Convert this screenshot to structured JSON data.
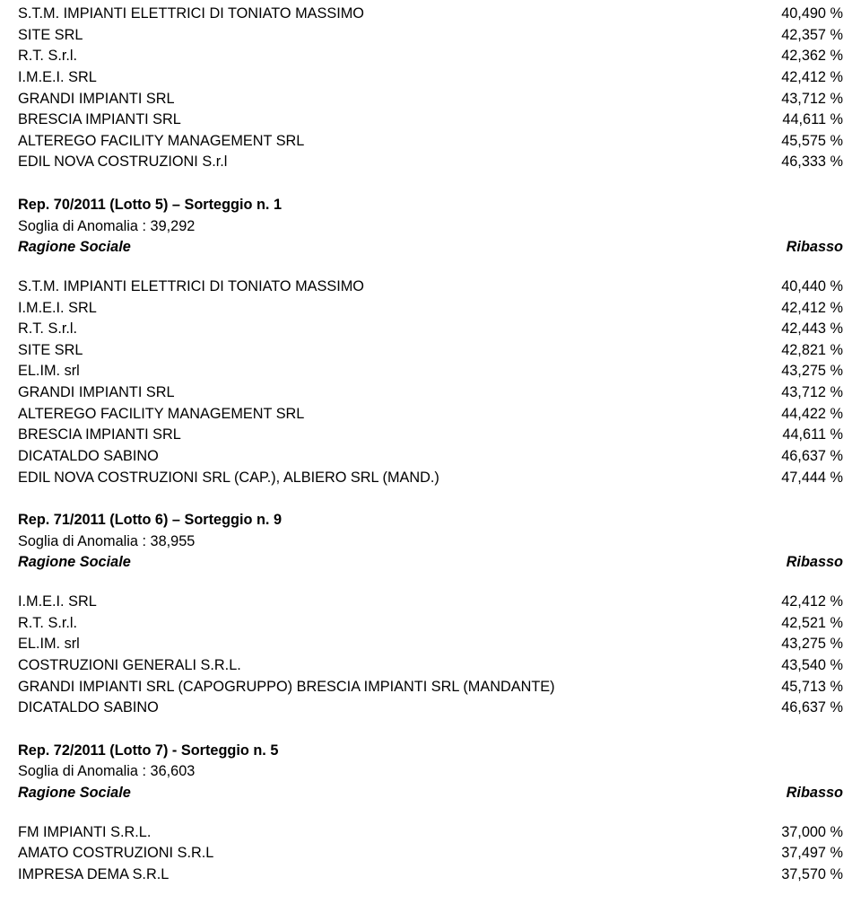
{
  "intro_rows": [
    {
      "name": "S.T.M. IMPIANTI ELETTRICI DI TONIATO MASSIMO",
      "val": "40,490 %"
    },
    {
      "name": "SITE SRL",
      "val": "42,357 %"
    },
    {
      "name": "R.T. S.r.l.",
      "val": "42,362 %"
    },
    {
      "name": "I.M.E.I. SRL",
      "val": "42,412 %"
    },
    {
      "name": "GRANDI IMPIANTI SRL",
      "val": "43,712 %"
    },
    {
      "name": "BRESCIA IMPIANTI SRL",
      "val": "44,611 %"
    },
    {
      "name": "ALTEREGO FACILITY MANAGEMENT SRL",
      "val": "45,575 %"
    },
    {
      "name": "EDIL NOVA COSTRUZIONI S.r.l",
      "val": "46,333 %"
    }
  ],
  "sections": [
    {
      "title": "Rep. 70/2011 (Lotto 5) – Sorteggio n. 1",
      "soglia": "Soglia di Anomalia : 39,292",
      "header_left": "Ragione Sociale",
      "header_right": "Ribasso",
      "rows": [
        {
          "name": "S.T.M. IMPIANTI ELETTRICI DI TONIATO MASSIMO",
          "val": "40,440 %"
        },
        {
          "name": "I.M.E.I. SRL",
          "val": "42,412 %"
        },
        {
          "name": "R.T. S.r.l.",
          "val": "42,443 %"
        },
        {
          "name": "SITE SRL",
          "val": "42,821 %"
        },
        {
          "name": "EL.IM. srl",
          "val": "43,275 %"
        },
        {
          "name": "GRANDI IMPIANTI SRL",
          "val": "43,712 %"
        },
        {
          "name": "ALTEREGO FACILITY MANAGEMENT SRL",
          "val": "44,422 %"
        },
        {
          "name": "BRESCIA IMPIANTI SRL",
          "val": "44,611 %"
        },
        {
          "name": "DICATALDO SABINO",
          "val": "46,637 %"
        },
        {
          "name": "EDIL NOVA COSTRUZIONI SRL (CAP.), ALBIERO SRL (MAND.)",
          "val": "47,444 %"
        }
      ]
    },
    {
      "title": "Rep. 71/2011 (Lotto 6) – Sorteggio n. 9",
      "soglia": "Soglia di Anomalia : 38,955",
      "header_left": "Ragione Sociale",
      "header_right": "Ribasso",
      "rows": [
        {
          "name": "I.M.E.I. SRL",
          "val": "42,412 %"
        },
        {
          "name": "R.T. S.r.l.",
          "val": "42,521 %"
        },
        {
          "name": "EL.IM. srl",
          "val": "43,275 %"
        },
        {
          "name": "COSTRUZIONI GENERALI S.R.L.",
          "val": "43,540 %"
        },
        {
          "name": "GRANDI IMPIANTI SRL (CAPOGRUPPO) BRESCIA IMPIANTI SRL (MANDANTE)",
          "val": "45,713 %"
        },
        {
          "name": "DICATALDO SABINO",
          "val": "46,637 %"
        }
      ]
    },
    {
      "title": "Rep. 72/2011 (Lotto 7)  -  Sorteggio n. 5",
      "soglia": "Soglia di Anomalia : 36,603",
      "header_left": "Ragione Sociale",
      "header_right": "Ribasso",
      "rows": [
        {
          "name": "FM IMPIANTI S.R.L.",
          "val": "37,000 %"
        },
        {
          "name": "AMATO COSTRUZIONI S.R.L",
          "val": "37,497 %"
        },
        {
          "name": "IMPRESA DEMA S.R.L",
          "val": "37,570 %"
        }
      ]
    }
  ]
}
